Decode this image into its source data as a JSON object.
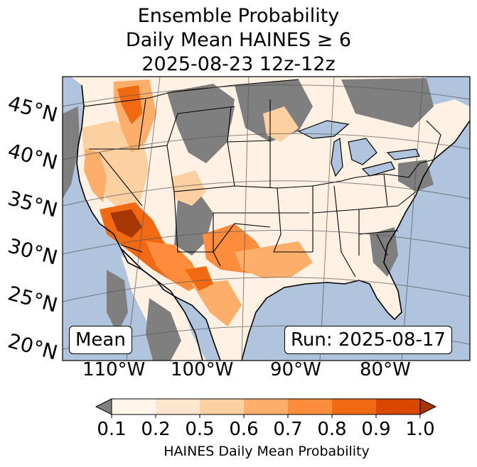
{
  "title": {
    "line1": "Ensemble Probability",
    "line2": "Daily Mean HAINES ≥ 6",
    "line3": "2025-08-23 12z-12z"
  },
  "labels": {
    "mean": "Mean",
    "run": "Run: 2025-08-17"
  },
  "lat_labels": [
    "45°N",
    "40°N",
    "35°N",
    "30°N",
    "25°N",
    "20°N"
  ],
  "lon_labels": [
    "110°W",
    "100°W",
    "90°W",
    "80°W"
  ],
  "colorbar": {
    "ticks": [
      "0.1",
      "0.2",
      "0.5",
      "0.6",
      "0.7",
      "0.8",
      "0.9",
      "1.0"
    ],
    "colors": [
      "#fff5eb",
      "#fee6ce",
      "#fdd0a2",
      "#fdae6b",
      "#fd8d3c",
      "#f16913",
      "#d94801",
      "#a63603"
    ],
    "under_color": "#808080",
    "label": "HAINES Daily Mean Probability"
  },
  "colors": {
    "ocean": "#b0c4de",
    "land": "#fff1e4",
    "no_data": "#7f7f7f",
    "lakes": "#b0c4de"
  }
}
